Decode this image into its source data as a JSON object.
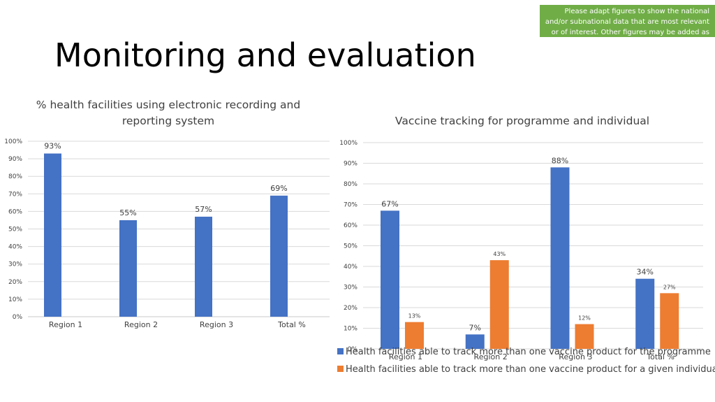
{
  "slide": {
    "title": "Monitoring and evaluation",
    "note": "Please adapt figures to show the national and/or subnational data that are most relevant or of interest. Other figures may be added as needed"
  },
  "colors": {
    "blue": "#4472c4",
    "orange": "#ed7d31",
    "note_bg": "#70ad47"
  },
  "chart_data": [
    {
      "type": "bar",
      "title_lines": [
        "% health facilities using electronic recording and",
        "reporting system"
      ],
      "categories": [
        "Region 1",
        "Region 2",
        "Region 3",
        "Total %"
      ],
      "series": [
        {
          "values": [
            93,
            55,
            57,
            69
          ]
        }
      ],
      "value_labels": [
        "93%",
        "55%",
        "57%",
        "69%"
      ],
      "y_ticks": [
        "0%",
        "10%",
        "20%",
        "30%",
        "40%",
        "50%",
        "60%",
        "70%",
        "80%",
        "90%",
        "100%"
      ],
      "ylim": [
        0,
        100
      ],
      "grid": true
    },
    {
      "type": "bar",
      "title_lines": [
        "Vaccine tracking for programme and individual"
      ],
      "categories": [
        "Region 1",
        "Region 2",
        "Region 3",
        "Total %"
      ],
      "series": [
        {
          "name": "Health facilities able to track more than one vaccine product for the programme",
          "values": [
            67,
            7,
            88,
            34
          ],
          "labels": [
            "67%",
            "7%",
            "88%",
            "34%"
          ]
        },
        {
          "name": "Health facilities able to track more than one vaccine product for a given individual",
          "values": [
            13,
            43,
            12,
            27
          ],
          "labels": [
            "13%",
            "43%",
            "12%",
            "27%"
          ]
        }
      ],
      "y_ticks": [
        "0%",
        "10%",
        "20%",
        "30%",
        "40%",
        "50%",
        "60%",
        "70%",
        "80%",
        "90%",
        "100%"
      ],
      "ylim": [
        0,
        100
      ],
      "grid": true,
      "legend": "bottom"
    }
  ]
}
